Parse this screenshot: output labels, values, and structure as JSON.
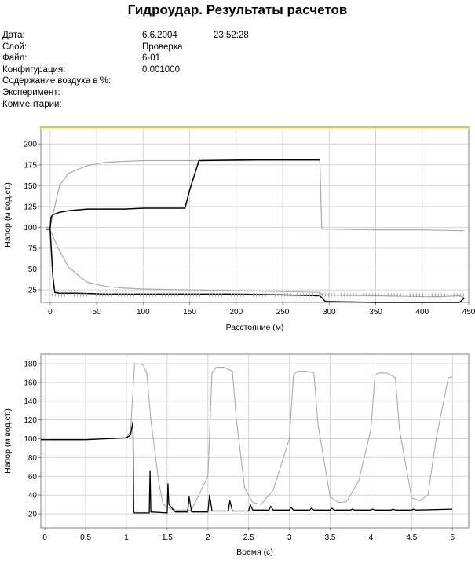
{
  "title": "Гидроудар. Результаты расчетов",
  "info": {
    "labels": [
      "Дата:",
      "Слой:",
      "Файл:",
      "Конфигурация:",
      "Содержание воздуха в %:",
      "Эксперимент:",
      "Комментарии:"
    ],
    "values": [
      "6.6.2004",
      "Проверка",
      "",
      "6-01",
      "0.001000",
      "",
      ""
    ],
    "time": "23:52:28"
  },
  "chart_data": [
    {
      "type": "line",
      "xlabel": "Расстояние (м)",
      "ylabel": "Напор (м вод.ст.)",
      "xlim": [
        -10,
        450
      ],
      "ylim": [
        10,
        220
      ],
      "xticks": [
        0,
        50,
        100,
        150,
        200,
        250,
        300,
        350,
        400,
        450
      ],
      "yticks": [
        25,
        50,
        75,
        100,
        125,
        150,
        175,
        200
      ],
      "grid": true,
      "colors": {
        "max_envelope": "#aaaaaa",
        "min_envelope": "#aaaaaa",
        "head": "#000000",
        "pipe": "#ffff66"
      },
      "series": [
        {
          "x": [
            -10,
            450
          ],
          "y": [
            218,
            218
          ]
        },
        {
          "x": [
            -5,
            0,
            10,
            20,
            40,
            60,
            80,
            100,
            150,
            200,
            250,
            290,
            292,
            350,
            400,
            440,
            445
          ],
          "y": [
            100,
            100,
            150,
            165,
            174,
            178,
            179,
            180,
            180,
            180,
            180,
            180,
            98,
            97,
            97,
            96,
            96
          ]
        },
        {
          "x": [
            -5,
            0,
            10,
            20,
            40,
            60,
            80,
            100,
            150,
            200,
            250,
            290,
            292,
            350,
            400,
            420,
            440,
            445
          ],
          "y": [
            97,
            97,
            72,
            52,
            34,
            29,
            27,
            26,
            25,
            24,
            23,
            22,
            19,
            18,
            17,
            17,
            18,
            16
          ]
        },
        {
          "x": [
            -5,
            0,
            1,
            2,
            3,
            5,
            10,
            20,
            40,
            60,
            80,
            100,
            140,
            145,
            150,
            160,
            225,
            290,
            291,
            296
          ],
          "y": [
            98,
            98,
            112,
            114,
            115,
            116,
            118,
            120,
            122,
            122,
            122,
            123,
            123,
            123,
            145,
            180,
            181,
            181,
            null,
            null
          ]
        },
        {
          "x": [
            -5,
            0,
            3,
            5,
            10,
            30,
            60,
            100,
            150,
            200,
            250,
            290,
            296,
            350,
            400,
            440,
            445
          ],
          "y": [
            98,
            98,
            40,
            22,
            21,
            21,
            20,
            20,
            20,
            20,
            19,
            18,
            11,
            10,
            10,
            10,
            15
          ]
        },
        {
          "x": [
            -5,
            0,
            290,
            296,
            445
          ],
          "y": [
            19,
            19,
            19,
            19,
            19
          ]
        }
      ]
    },
    {
      "type": "line",
      "xlabel": "Время (с)",
      "ylabel": "Напор (м вод.ст.)",
      "xlim": [
        -0.05,
        5.2
      ],
      "ylim": [
        5,
        190
      ],
      "xticks": [
        0,
        0.5,
        1,
        1.5,
        2,
        2.5,
        3,
        3.5,
        4,
        4.5,
        5
      ],
      "yticks": [
        20,
        40,
        60,
        80,
        100,
        120,
        140,
        160,
        180
      ],
      "grid": true,
      "colors": {
        "upstream": "#aaaaaa",
        "downstream": "#000000"
      },
      "series": [
        {
          "x": [
            -0.05,
            0.5,
            1.0,
            1.05,
            1.1,
            1.2,
            1.25,
            1.3,
            1.4,
            1.45,
            1.55,
            1.6,
            1.8,
            2.0,
            2.05,
            2.1,
            2.2,
            2.3,
            2.35,
            2.45,
            2.55,
            2.65,
            2.8,
            3.0,
            3.05,
            3.1,
            3.2,
            3.3,
            3.35,
            3.5,
            3.6,
            3.7,
            3.85,
            4.0,
            4.05,
            4.1,
            4.2,
            4.3,
            4.35,
            4.5,
            4.6,
            4.7,
            4.8,
            4.95,
            5.0
          ],
          "y": [
            99,
            99,
            101,
            108,
            180,
            179,
            170,
            120,
            52,
            30,
            25,
            24,
            24,
            60,
            170,
            176,
            176,
            172,
            120,
            48,
            32,
            30,
            45,
            100,
            168,
            172,
            172,
            170,
            115,
            38,
            32,
            33,
            55,
            110,
            168,
            170,
            170,
            165,
            110,
            37,
            34,
            40,
            100,
            165,
            166
          ]
        },
        {
          "x": [
            -0.05,
            0.5,
            1.0,
            1.05,
            1.08,
            1.09,
            1.1,
            1.28,
            1.29,
            1.3,
            1.5,
            1.51,
            1.52,
            1.58,
            1.6,
            1.75,
            1.77,
            1.8,
            2.0,
            2.02,
            2.05,
            2.25,
            2.27,
            2.3,
            2.5,
            2.52,
            2.55,
            2.75,
            2.77,
            2.8,
            3.0,
            3.02,
            3.05,
            3.25,
            3.27,
            3.3,
            3.5,
            3.52,
            3.55,
            3.75,
            3.77,
            3.8,
            4.0,
            4.02,
            4.05,
            4.25,
            4.27,
            4.3,
            4.5,
            4.52,
            4.55,
            5.0
          ],
          "y": [
            99,
            99,
            101,
            104,
            118,
            22,
            21,
            21,
            66,
            22,
            21,
            52,
            30,
            24,
            22,
            22,
            38,
            22,
            22,
            40,
            23,
            23,
            34,
            23,
            23,
            30,
            24,
            24,
            28,
            24,
            24,
            27,
            24,
            24,
            26,
            24,
            24,
            26,
            24,
            24,
            25,
            24,
            24,
            25,
            24,
            24,
            25,
            24,
            24,
            25,
            24,
            25
          ]
        }
      ]
    }
  ]
}
